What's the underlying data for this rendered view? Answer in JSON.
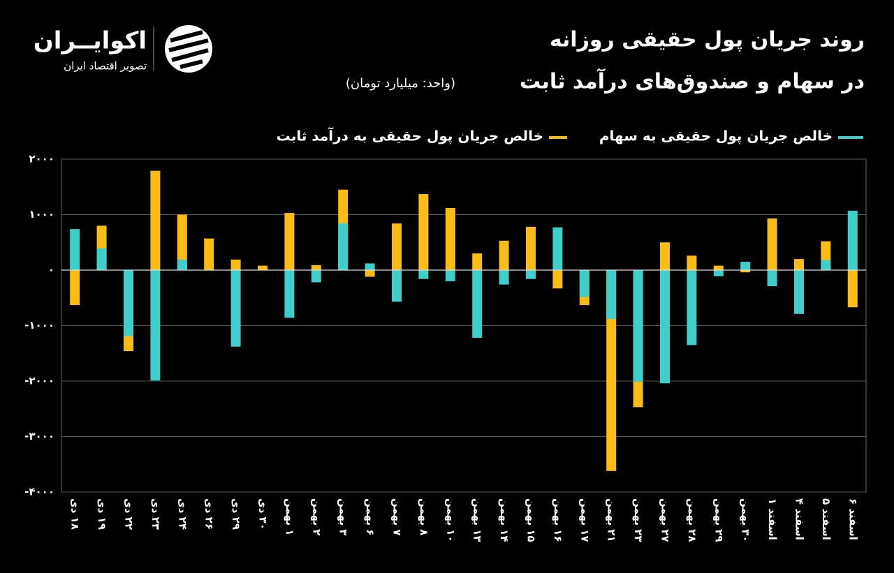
{
  "brand": {
    "name": "اکوایــران",
    "tagline": "تصویر اقتصاد ایران"
  },
  "chart_data": {
    "type": "bar",
    "title": "روند جریان پول حقیقی روزانه",
    "subtitle": "در سهام و صندوق‌های درآمد ثابت",
    "unit": "(واحد: میلیارد تومان)",
    "categories": [
      "۱۸ دی",
      "۱۹ دی",
      "۲۲ دی",
      "۲۳ دی",
      "۲۴ دی",
      "۲۶ دی",
      "۲۹ دی",
      "۳۰ دی",
      "۱ بهمن",
      "۲ بهمن",
      "۳ بهمن",
      "۶ بهمن",
      "۷ بهمن",
      "۸ بهمن",
      "۱۰ بهمن",
      "۱۳ بهمن",
      "۱۴ بهمن",
      "۱۵ بهمن",
      "۱۶ بهمن",
      "۱۷ بهمن",
      "۲۱ بهمن",
      "۲۳ بهمن",
      "۲۷ بهمن",
      "۲۸ بهمن",
      "۲۹ بهمن",
      "۳۰ بهمن",
      "اسفند ۱",
      "اسفند ۴",
      "اسفند ۵",
      "اسفند ۶"
    ],
    "series": [
      {
        "name": "خالص جریان پول حقیقی به درآمد ثابت",
        "color": "#fbbd13",
        "values": [
          -630,
          800,
          -1460,
          1790,
          1000,
          570,
          190,
          80,
          1030,
          90,
          1450,
          -120,
          840,
          1370,
          1120,
          300,
          530,
          780,
          -330,
          -630,
          -3620,
          -2470,
          500,
          260,
          80,
          -40,
          930,
          200,
          520,
          -670
        ]
      },
      {
        "name": "خالص جریان پول حقیقی به سهام",
        "color": "#3ecfca",
        "values": [
          740,
          390,
          -1190,
          -1990,
          190,
          0,
          -1380,
          0,
          -860,
          -220,
          840,
          120,
          -570,
          -160,
          -200,
          -1220,
          -260,
          -160,
          770,
          -480,
          -880,
          -2010,
          -2040,
          -1350,
          -110,
          150,
          -290,
          -790,
          180,
          1070
        ]
      }
    ],
    "ylim": [
      -4000,
      2000
    ],
    "yticks": [
      {
        "value": 2000,
        "label": "۲۰۰۰"
      },
      {
        "value": 1000,
        "label": "۱۰۰۰"
      },
      {
        "value": 0,
        "label": "۰"
      },
      {
        "value": -1000,
        "label": "-۱۰۰۰"
      },
      {
        "value": -2000,
        "label": "-۲۰۰۰"
      },
      {
        "value": -3000,
        "label": "-۳۰۰۰"
      },
      {
        "value": -4000,
        "label": "-۴۰۰۰"
      }
    ],
    "grid": true
  }
}
